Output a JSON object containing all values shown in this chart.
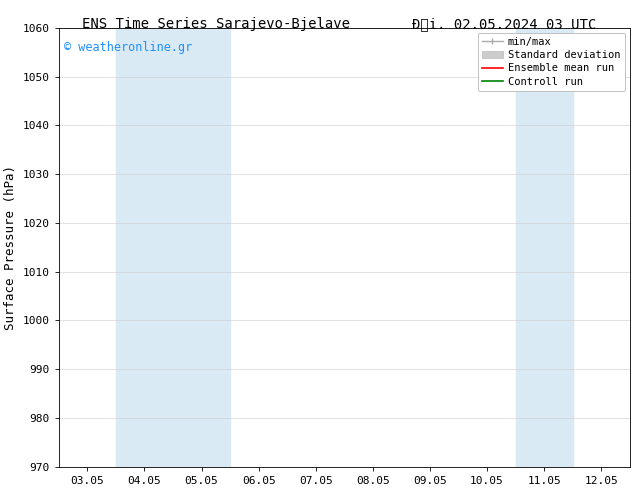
{
  "title_left": "ENS Time Series Sarajevo-Bjelave",
  "title_right": "Đải. 02.05.2024 03 UTC",
  "ylabel": "Surface Pressure (hPa)",
  "ylim": [
    970,
    1060
  ],
  "yticks": [
    970,
    980,
    990,
    1000,
    1010,
    1020,
    1030,
    1040,
    1050,
    1060
  ],
  "xtick_labels": [
    "03.05",
    "04.05",
    "05.05",
    "06.05",
    "07.05",
    "08.05",
    "09.05",
    "10.05",
    "11.05",
    "12.05"
  ],
  "watermark": "© weatheronline.gr",
  "watermark_color": "#1e90ff",
  "shaded_regions": [
    {
      "xstart": 1.0,
      "xend": 3.0
    },
    {
      "xstart": 8.0,
      "xend": 9.0
    }
  ],
  "shaded_color": "#daeaf5",
  "bg_color": "#ffffff",
  "title_fontsize": 10,
  "axis_label_fontsize": 9,
  "tick_fontsize": 8,
  "legend_fontsize": 7.5
}
